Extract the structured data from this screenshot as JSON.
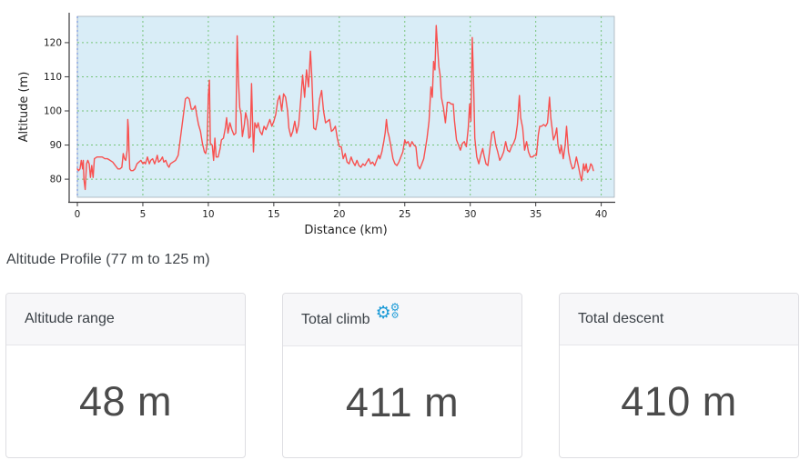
{
  "caption": "Altitude Profile (77 m to 125 m)",
  "icons": {
    "cog": "⚙"
  },
  "cards": [
    {
      "label": "Altitude range",
      "value": "48 m"
    },
    {
      "label": "Total climb",
      "value": "411 m",
      "icon": "cogs-icon"
    },
    {
      "label": "Total descent",
      "value": "410 m"
    }
  ],
  "chart_data": {
    "type": "line",
    "title": "",
    "xlabel": "Distance (km)",
    "ylabel": "Altitude (m)",
    "xlim": [
      0,
      41
    ],
    "ylim": [
      74.7,
      127.7
    ],
    "x_ticks": [
      0,
      5,
      10,
      15,
      20,
      25,
      30,
      35,
      40
    ],
    "y_ticks": [
      80,
      90,
      100,
      110,
      120
    ],
    "grid": true,
    "legend": false,
    "altitude_min_m": 77,
    "altitude_max_m": 125,
    "colors": {
      "line": "#f8504f",
      "plot_bg": "#d9edf7",
      "grid": "#6cc06c",
      "zero_line": "#5b7ed6",
      "spine": "#3a3a3c",
      "tick_text": "#1f1f1f",
      "plot_border": "#a6b0b8"
    },
    "series": [
      {
        "name": "altitude",
        "points": [
          [
            0,
            83
          ],
          [
            0.1,
            82.5
          ],
          [
            0.2,
            83
          ],
          [
            0.3,
            85.5
          ],
          [
            0.4,
            83
          ],
          [
            0.45,
            85.5
          ],
          [
            0.5,
            80
          ],
          [
            0.6,
            77
          ],
          [
            0.7,
            84.5
          ],
          [
            0.8,
            85.5
          ],
          [
            0.9,
            84.5
          ],
          [
            1.0,
            80.5
          ],
          [
            1.1,
            84
          ],
          [
            1.2,
            80.5
          ],
          [
            1.3,
            86
          ],
          [
            1.5,
            86.5
          ],
          [
            1.7,
            86.5
          ],
          [
            1.9,
            86.5
          ],
          [
            2.1,
            86
          ],
          [
            2.3,
            86
          ],
          [
            2.5,
            85.5
          ],
          [
            2.7,
            85
          ],
          [
            2.9,
            84
          ],
          [
            3.1,
            83
          ],
          [
            3.25,
            83
          ],
          [
            3.4,
            83.5
          ],
          [
            3.5,
            87.5
          ],
          [
            3.6,
            86
          ],
          [
            3.7,
            85.5
          ],
          [
            3.8,
            88.5
          ],
          [
            3.85,
            97.5
          ],
          [
            3.9,
            95
          ],
          [
            3.95,
            88
          ],
          [
            4.0,
            83
          ],
          [
            4.1,
            82.5
          ],
          [
            4.25,
            82.5
          ],
          [
            4.4,
            83
          ],
          [
            4.55,
            84.5
          ],
          [
            4.7,
            85
          ],
          [
            4.85,
            85.5
          ],
          [
            5.0,
            84.5
          ],
          [
            5.1,
            85
          ],
          [
            5.2,
            84.5
          ],
          [
            5.35,
            86.5
          ],
          [
            5.5,
            84.5
          ],
          [
            5.6,
            85.5
          ],
          [
            5.75,
            86
          ],
          [
            5.9,
            84.5
          ],
          [
            6.0,
            85.5
          ],
          [
            6.1,
            87
          ],
          [
            6.2,
            85
          ],
          [
            6.35,
            85.5
          ],
          [
            6.5,
            86.5
          ],
          [
            6.6,
            85
          ],
          [
            6.75,
            85.5
          ],
          [
            6.9,
            84
          ],
          [
            7.0,
            83.5
          ],
          [
            7.1,
            84.5
          ],
          [
            7.3,
            85
          ],
          [
            7.5,
            85.5
          ],
          [
            7.7,
            87
          ],
          [
            7.9,
            93
          ],
          [
            8.1,
            99
          ],
          [
            8.25,
            103.5
          ],
          [
            8.4,
            104
          ],
          [
            8.55,
            103.5
          ],
          [
            8.7,
            100.5
          ],
          [
            8.85,
            100.5
          ],
          [
            9.0,
            101.5
          ],
          [
            9.1,
            99
          ],
          [
            9.25,
            96
          ],
          [
            9.4,
            94
          ],
          [
            9.55,
            90.5
          ],
          [
            9.7,
            88
          ],
          [
            9.8,
            87.5
          ],
          [
            9.9,
            90
          ],
          [
            10.0,
            104.5
          ],
          [
            10.08,
            109
          ],
          [
            10.15,
            90.5
          ],
          [
            10.3,
            90
          ],
          [
            10.4,
            85.5
          ],
          [
            10.5,
            92
          ],
          [
            10.6,
            86.5
          ],
          [
            10.75,
            86.5
          ],
          [
            10.9,
            89
          ],
          [
            11.0,
            91.5
          ],
          [
            11.15,
            92
          ],
          [
            11.3,
            95
          ],
          [
            11.4,
            98
          ],
          [
            11.5,
            93.5
          ],
          [
            11.65,
            96.5
          ],
          [
            11.8,
            94.5
          ],
          [
            11.95,
            93
          ],
          [
            12.1,
            93.5
          ],
          [
            12.2,
            122
          ],
          [
            12.3,
            109
          ],
          [
            12.4,
            101
          ],
          [
            12.5,
            99
          ],
          [
            12.6,
            92.5
          ],
          [
            12.75,
            96
          ],
          [
            12.85,
            99.5
          ],
          [
            13.0,
            97
          ],
          [
            13.1,
            92
          ],
          [
            13.2,
            92.5
          ],
          [
            13.3,
            108
          ],
          [
            13.4,
            94
          ],
          [
            13.45,
            88
          ],
          [
            13.55,
            96.5
          ],
          [
            13.7,
            95
          ],
          [
            13.8,
            96.5
          ],
          [
            13.95,
            94
          ],
          [
            14.1,
            93
          ],
          [
            14.25,
            95.5
          ],
          [
            14.4,
            94.5
          ],
          [
            14.55,
            96
          ],
          [
            14.7,
            97.5
          ],
          [
            14.85,
            95.5
          ],
          [
            15.0,
            97
          ],
          [
            15.15,
            99
          ],
          [
            15.3,
            103
          ],
          [
            15.45,
            104.5
          ],
          [
            15.6,
            100
          ],
          [
            15.75,
            105
          ],
          [
            15.9,
            104
          ],
          [
            16.05,
            100
          ],
          [
            16.15,
            95
          ],
          [
            16.3,
            92.5
          ],
          [
            16.45,
            94
          ],
          [
            16.6,
            97
          ],
          [
            16.75,
            93.5
          ],
          [
            16.9,
            96
          ],
          [
            17.05,
            103
          ],
          [
            17.2,
            110.5
          ],
          [
            17.35,
            104
          ],
          [
            17.5,
            112
          ],
          [
            17.65,
            107
          ],
          [
            17.8,
            117.5
          ],
          [
            17.9,
            110
          ],
          [
            18.05,
            95
          ],
          [
            18.2,
            94.5
          ],
          [
            18.35,
            98
          ],
          [
            18.5,
            103.5
          ],
          [
            18.65,
            106
          ],
          [
            18.8,
            100
          ],
          [
            18.95,
            96.5
          ],
          [
            19.1,
            97
          ],
          [
            19.25,
            97.5
          ],
          [
            19.4,
            94
          ],
          [
            19.55,
            94.5
          ],
          [
            19.7,
            95.5
          ],
          [
            19.85,
            92
          ],
          [
            20.0,
            89.5
          ],
          [
            20.15,
            89.5
          ],
          [
            20.3,
            86
          ],
          [
            20.45,
            87.5
          ],
          [
            20.6,
            85
          ],
          [
            20.75,
            84.5
          ],
          [
            20.9,
            86.5
          ],
          [
            21.05,
            85
          ],
          [
            21.2,
            84
          ],
          [
            21.35,
            85.5
          ],
          [
            21.5,
            84
          ],
          [
            21.65,
            83.5
          ],
          [
            21.8,
            84.5
          ],
          [
            21.95,
            84
          ],
          [
            22.1,
            85
          ],
          [
            22.25,
            86
          ],
          [
            22.4,
            84.5
          ],
          [
            22.55,
            85
          ],
          [
            22.7,
            84
          ],
          [
            22.85,
            85.5
          ],
          [
            23.0,
            87
          ],
          [
            23.1,
            86
          ],
          [
            23.25,
            88
          ],
          [
            23.4,
            91
          ],
          [
            23.5,
            93.5
          ],
          [
            23.6,
            97.5
          ],
          [
            23.7,
            94
          ],
          [
            23.8,
            92.5
          ],
          [
            23.95,
            89.5
          ],
          [
            24.1,
            86
          ],
          [
            24.25,
            84.5
          ],
          [
            24.4,
            84
          ],
          [
            24.55,
            85
          ],
          [
            24.7,
            86.5
          ],
          [
            24.85,
            88
          ],
          [
            25.0,
            91.5
          ],
          [
            25.1,
            90.5
          ],
          [
            25.25,
            91
          ],
          [
            25.4,
            89.5
          ],
          [
            25.55,
            91
          ],
          [
            25.7,
            90
          ],
          [
            25.85,
            89.5
          ],
          [
            26.0,
            84
          ],
          [
            26.15,
            83
          ],
          [
            26.3,
            84.5
          ],
          [
            26.45,
            86
          ],
          [
            26.55,
            88.5
          ],
          [
            26.7,
            92
          ],
          [
            26.85,
            97
          ],
          [
            27.0,
            107
          ],
          [
            27.1,
            104
          ],
          [
            27.2,
            114.5
          ],
          [
            27.3,
            112
          ],
          [
            27.4,
            125
          ],
          [
            27.5,
            119
          ],
          [
            27.6,
            113
          ],
          [
            27.7,
            110.5
          ],
          [
            27.8,
            104
          ],
          [
            27.95,
            101
          ],
          [
            28.1,
            96.5
          ],
          [
            28.25,
            102.5
          ],
          [
            28.4,
            102.5
          ],
          [
            28.55,
            102
          ],
          [
            28.7,
            102
          ],
          [
            28.8,
            97
          ],
          [
            28.95,
            91.5
          ],
          [
            29.1,
            90
          ],
          [
            29.25,
            88.5
          ],
          [
            29.4,
            90.5
          ],
          [
            29.55,
            91
          ],
          [
            29.7,
            89.5
          ],
          [
            29.85,
            95
          ],
          [
            29.95,
            102
          ],
          [
            30.05,
            97
          ],
          [
            30.15,
            121.5
          ],
          [
            30.25,
            109
          ],
          [
            30.35,
            92
          ],
          [
            30.5,
            86.5
          ],
          [
            30.65,
            84.5
          ],
          [
            30.8,
            87
          ],
          [
            30.95,
            89
          ],
          [
            31.05,
            87
          ],
          [
            31.2,
            84.5
          ],
          [
            31.35,
            84
          ],
          [
            31.5,
            89
          ],
          [
            31.65,
            93.5
          ],
          [
            31.8,
            94
          ],
          [
            31.95,
            90
          ],
          [
            32.1,
            88
          ],
          [
            32.25,
            85.5
          ],
          [
            32.4,
            86.5
          ],
          [
            32.55,
            88
          ],
          [
            32.7,
            91
          ],
          [
            32.85,
            88.5
          ],
          [
            33.0,
            88
          ],
          [
            33.15,
            89.5
          ],
          [
            33.3,
            90.5
          ],
          [
            33.45,
            92
          ],
          [
            33.6,
            96
          ],
          [
            33.75,
            104.5
          ],
          [
            33.85,
            98
          ],
          [
            34.0,
            95
          ],
          [
            34.15,
            88.5
          ],
          [
            34.3,
            91
          ],
          [
            34.45,
            88
          ],
          [
            34.6,
            86.5
          ],
          [
            34.75,
            86.5
          ],
          [
            34.9,
            87
          ],
          [
            35.05,
            87
          ],
          [
            35.2,
            93
          ],
          [
            35.3,
            95.5
          ],
          [
            35.45,
            95.5
          ],
          [
            35.6,
            96
          ],
          [
            35.75,
            95.5
          ],
          [
            35.9,
            96.5
          ],
          [
            36.05,
            104
          ],
          [
            36.15,
            98
          ],
          [
            36.25,
            95
          ],
          [
            36.35,
            91.5
          ],
          [
            36.5,
            93
          ],
          [
            36.6,
            95
          ],
          [
            36.7,
            90
          ],
          [
            36.85,
            87.5
          ],
          [
            36.95,
            90
          ],
          [
            37.1,
            86
          ],
          [
            37.25,
            90
          ],
          [
            37.35,
            95.5
          ],
          [
            37.5,
            88
          ],
          [
            37.65,
            85
          ],
          [
            37.8,
            83
          ],
          [
            37.95,
            83.5
          ],
          [
            38.1,
            86.5
          ],
          [
            38.25,
            84
          ],
          [
            38.4,
            81
          ],
          [
            38.5,
            79.5
          ],
          [
            38.65,
            84.5
          ],
          [
            38.75,
            82.5
          ],
          [
            38.85,
            84.5
          ],
          [
            38.95,
            82
          ],
          [
            39.1,
            83
          ],
          [
            39.2,
            84.5
          ],
          [
            39.3,
            84
          ],
          [
            39.4,
            82.5
          ]
        ]
      }
    ]
  }
}
